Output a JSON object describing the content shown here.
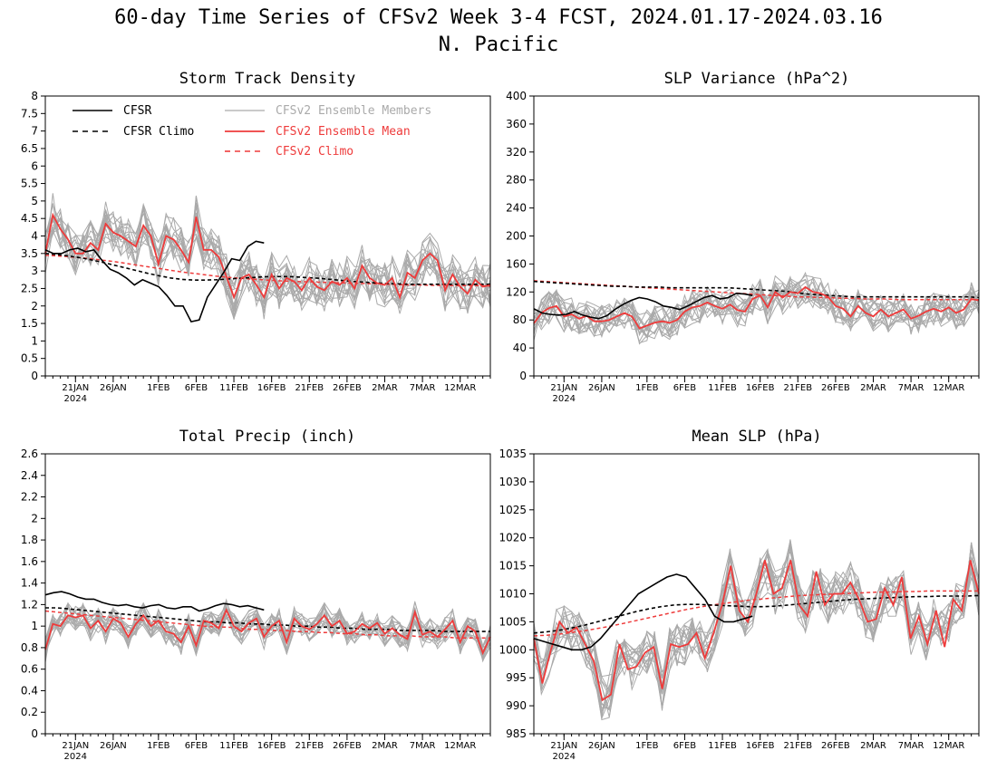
{
  "figure": {
    "title_line1": "60-day Time Series of CFSv2 Week 3-4 FCST, 2024.01.17-2024.03.16",
    "title_line2": "N. Pacific"
  },
  "legend": [
    {
      "name": "CFSR",
      "color": "#000000",
      "dashed": false,
      "width": 1.6
    },
    {
      "name": "CFSR Climo",
      "color": "#000000",
      "dashed": true,
      "width": 1.6
    },
    {
      "name": "CFSv2 Ensemble Members",
      "color": "#aaaaaa",
      "dashed": false,
      "width": 1.2
    },
    {
      "name": "CFSv2 Ensemble Mean",
      "color": "#ee3b3b",
      "dashed": false,
      "width": 1.8
    },
    {
      "name": "CFSv2 Climo",
      "color": "#ee3b3b",
      "dashed": true,
      "width": 1.6
    }
  ],
  "x_ticks": {
    "labels": [
      "21JAN",
      "26JAN",
      "1FEB",
      "6FEB",
      "11FEB",
      "16FEB",
      "21FEB",
      "26FEB",
      "2MAR",
      "7MAR",
      "12MAR"
    ],
    "year_label": "2024",
    "day_index": [
      4,
      9,
      15,
      20,
      25,
      30,
      35,
      40,
      45,
      50,
      55
    ]
  },
  "chart_data": [
    {
      "type": "line",
      "title": "Storm Track Density",
      "ylim": [
        0,
        8
      ],
      "yticks": [
        "0",
        "0.5",
        "1",
        "1.5",
        "2",
        "2.5",
        "3",
        "3.5",
        "4",
        "4.5",
        "5",
        "5.5",
        "6",
        "6.5",
        "7",
        "7.5",
        "8"
      ],
      "ytick_values": [
        0,
        0.5,
        1,
        1.5,
        2,
        2.5,
        3,
        3.5,
        4,
        4.5,
        5,
        5.5,
        6,
        6.5,
        7,
        7.5,
        8
      ],
      "ensemble_mean": [
        3.5,
        4.6,
        4.2,
        3.9,
        3.5,
        3.5,
        3.8,
        3.6,
        4.35,
        4.1,
        4.0,
        3.85,
        3.7,
        4.3,
        4.0,
        3.2,
        4.0,
        3.9,
        3.6,
        3.25,
        4.55,
        3.6,
        3.6,
        3.4,
        2.85,
        2.25,
        2.8,
        2.9,
        2.6,
        2.25,
        2.9,
        2.5,
        2.8,
        2.7,
        2.45,
        2.8,
        2.55,
        2.45,
        2.7,
        2.6,
        2.8,
        2.5,
        3.15,
        2.8,
        2.65,
        2.6,
        2.8,
        2.25,
        2.95,
        2.8,
        3.3,
        3.5,
        3.3,
        2.45,
        2.9,
        2.55,
        2.35,
        2.75,
        2.55,
        2.6
      ],
      "cfsr": [
        3.6,
        3.5,
        3.5,
        3.6,
        3.65,
        3.55,
        3.6,
        3.3,
        3.05,
        2.95,
        2.8,
        2.6,
        2.75,
        2.65,
        2.55,
        2.3,
        2.0,
        2.0,
        1.55,
        1.6,
        2.25,
        2.6,
        2.95,
        3.35,
        3.3,
        3.7,
        3.85,
        3.8
      ],
      "cfsr_climo": [
        3.5,
        3.47,
        3.43,
        3.38,
        3.32,
        3.25,
        3.17,
        3.09,
        3.01,
        2.93,
        2.86,
        2.8,
        2.76,
        2.74,
        2.74,
        2.75,
        2.77,
        2.79,
        2.81,
        2.83,
        2.84,
        2.84,
        2.83,
        2.81,
        2.79,
        2.76,
        2.73,
        2.7,
        2.68,
        2.66,
        2.64,
        2.63,
        2.62,
        2.62,
        2.62,
        2.62,
        2.62,
        2.62,
        2.62,
        2.62
      ],
      "cfsv2_climo": [
        3.45,
        3.43,
        3.41,
        3.38,
        3.35,
        3.31,
        3.27,
        3.22,
        3.17,
        3.12,
        3.07,
        3.02,
        2.97,
        2.93,
        2.89,
        2.85,
        2.82,
        2.79,
        2.77,
        2.75,
        2.73,
        2.71,
        2.7,
        2.69,
        2.68,
        2.67,
        2.66,
        2.65,
        2.64,
        2.63,
        2.62,
        2.61,
        2.6,
        2.6,
        2.59,
        2.59,
        2.58,
        2.58,
        2.58,
        2.57
      ]
    },
    {
      "type": "line",
      "title": "SLP Variance (hPa^2)",
      "ylim": [
        0,
        400
      ],
      "yticks": [
        "0",
        "40",
        "80",
        "120",
        "160",
        "200",
        "240",
        "280",
        "320",
        "360",
        "400"
      ],
      "ytick_values": [
        0,
        40,
        80,
        120,
        160,
        200,
        240,
        280,
        320,
        360,
        400
      ],
      "ensemble_mean": [
        75,
        90,
        97,
        100,
        85,
        88,
        82,
        86,
        78,
        78,
        80,
        85,
        90,
        85,
        68,
        72,
        76,
        78,
        76,
        80,
        92,
        98,
        100,
        105,
        100,
        96,
        102,
        94,
        92,
        110,
        115,
        98,
        120,
        112,
        120,
        118,
        127,
        120,
        118,
        113,
        100,
        96,
        85,
        100,
        90,
        85,
        95,
        85,
        90,
        95,
        82,
        86,
        92,
        96,
        92,
        98,
        90,
        95,
        110,
        108
      ],
      "cfsr": [
        96,
        90,
        88,
        87,
        88,
        92,
        87,
        84,
        82,
        86,
        95,
        102,
        108,
        112,
        110,
        106,
        100,
        98,
        95,
        100,
        106,
        112,
        115,
        110,
        112,
        118,
        117,
        115
      ],
      "cfsr_climo": [
        135,
        134,
        133,
        132,
        131,
        130,
        129,
        128,
        128,
        127,
        127,
        127,
        126,
        126,
        126,
        126,
        126,
        126,
        125,
        124,
        123,
        122,
        121,
        119,
        117,
        116,
        115,
        114,
        113,
        113,
        113,
        113,
        113,
        113,
        113,
        113,
        113,
        113,
        113,
        112
      ],
      "cfsv2_climo": [
        136,
        135,
        134,
        133,
        132,
        131,
        130,
        129,
        128,
        127,
        126,
        125,
        124,
        123,
        122,
        121,
        120,
        119,
        118,
        117,
        116,
        115,
        114,
        113,
        113,
        112,
        112,
        111,
        111,
        110,
        110,
        110,
        109,
        109,
        109,
        109,
        109,
        109,
        109,
        109
      ]
    },
    {
      "type": "line",
      "title": "Total Precip (inch)",
      "ylim": [
        0,
        2.6
      ],
      "yticks": [
        "0",
        "0.2",
        "0.4",
        "0.6",
        "0.8",
        "1",
        "1.2",
        "1.4",
        "1.6",
        "1.8",
        "2",
        "2.2",
        "2.4",
        "2.6"
      ],
      "ytick_values": [
        0,
        0.2,
        0.4,
        0.6,
        0.8,
        1.0,
        1.2,
        1.4,
        1.6,
        1.8,
        2.0,
        2.2,
        2.4,
        2.6
      ],
      "ensemble_mean": [
        0.78,
        1.02,
        1.0,
        1.1,
        1.08,
        1.1,
        0.98,
        1.05,
        0.95,
        1.07,
        1.03,
        0.9,
        1.02,
        1.1,
        1.0,
        1.05,
        0.95,
        0.93,
        0.85,
        1.0,
        0.82,
        1.05,
        1.03,
        0.98,
        1.15,
        1.0,
        0.95,
        1.03,
        1.07,
        0.9,
        1.0,
        1.05,
        0.85,
        1.07,
        1.0,
        0.97,
        1.02,
        1.1,
        1.0,
        1.05,
        0.93,
        0.95,
        1.02,
        0.98,
        1.03,
        0.93,
        0.98,
        0.92,
        0.88,
        1.13,
        0.92,
        0.95,
        0.9,
        0.97,
        1.05,
        0.85,
        1.0,
        0.95,
        0.75,
        0.9
      ],
      "cfsr": [
        1.29,
        1.31,
        1.32,
        1.3,
        1.27,
        1.25,
        1.25,
        1.22,
        1.2,
        1.19,
        1.2,
        1.18,
        1.17,
        1.19,
        1.2,
        1.17,
        1.16,
        1.18,
        1.18,
        1.14,
        1.16,
        1.19,
        1.21,
        1.2,
        1.18,
        1.19,
        1.17,
        1.15
      ],
      "cfsr_climo": [
        1.17,
        1.17,
        1.16,
        1.15,
        1.14,
        1.13,
        1.12,
        1.11,
        1.1,
        1.09,
        1.08,
        1.07,
        1.06,
        1.05,
        1.04,
        1.04,
        1.03,
        1.03,
        1.02,
        1.02,
        1.01,
        1.01,
        1.0,
        1.0,
        0.99,
        0.99,
        0.98,
        0.98,
        0.97,
        0.97,
        0.97,
        0.96,
        0.96,
        0.96,
        0.96,
        0.95,
        0.95,
        0.95,
        0.95,
        0.95
      ],
      "cfsv2_climo": [
        1.14,
        1.13,
        1.12,
        1.11,
        1.1,
        1.09,
        1.08,
        1.07,
        1.06,
        1.05,
        1.04,
        1.03,
        1.02,
        1.01,
        1.0,
        0.99,
        0.99,
        0.98,
        0.97,
        0.97,
        0.96,
        0.96,
        0.95,
        0.95,
        0.94,
        0.94,
        0.93,
        0.93,
        0.92,
        0.92,
        0.91,
        0.91,
        0.91,
        0.9,
        0.9,
        0.9,
        0.89,
        0.89,
        0.89,
        0.89
      ]
    },
    {
      "type": "line",
      "title": "Mean SLP (hPa)",
      "ylim": [
        985,
        1035
      ],
      "yticks": [
        "985",
        "990",
        "995",
        "1000",
        "1005",
        "1010",
        "1015",
        "1020",
        "1025",
        "1030",
        "1035"
      ],
      "ytick_values": [
        985,
        990,
        995,
        1000,
        1005,
        1010,
        1015,
        1020,
        1025,
        1030,
        1035
      ],
      "ensemble_mean": [
        1002,
        994,
        1000,
        1005,
        1003,
        1004,
        1001,
        998,
        991,
        992,
        1001,
        996.5,
        997,
        999.5,
        1000.5,
        993,
        1001,
        1000.5,
        1001,
        1003,
        998.5,
        1003,
        1008,
        1015,
        1007,
        1005,
        1010,
        1016,
        1010,
        1011,
        1016,
        1008,
        1006,
        1014,
        1008,
        1010,
        1010,
        1012,
        1009,
        1005,
        1005.5,
        1011,
        1008,
        1013,
        1002,
        1006,
        1001,
        1007,
        1000.5,
        1009,
        1007,
        1016,
        1010
      ],
      "cfsr": [
        1002,
        1001.5,
        1001,
        1000.5,
        1000,
        1000,
        1000.5,
        1002,
        1004,
        1006,
        1008,
        1010,
        1011,
        1012,
        1013,
        1013.5,
        1013,
        1011,
        1009,
        1006,
        1005,
        1005,
        1005.5,
        1006
      ],
      "cfsr_climo": [
        1003,
        1003.2,
        1003.5,
        1003.9,
        1004.4,
        1005,
        1005.6,
        1006.2,
        1006.8,
        1007.3,
        1007.7,
        1008,
        1008.1,
        1008.1,
        1008,
        1007.9,
        1007.8,
        1007.7,
        1007.7,
        1007.8,
        1008,
        1008.2,
        1008.4,
        1008.6,
        1008.8,
        1009,
        1009.1,
        1009.2,
        1009.3,
        1009.4,
        1009.5,
        1009.5,
        1009.6,
        1009.6,
        1009.6,
        1009.7
      ],
      "cfsv2_climo": [
        1002.5,
        1002.6,
        1002.8,
        1003.1,
        1003.4,
        1003.8,
        1004.2,
        1004.7,
        1005.2,
        1005.7,
        1006.2,
        1006.7,
        1007.2,
        1007.6,
        1008,
        1008.3,
        1008.6,
        1008.9,
        1009.1,
        1009.3,
        1009.5,
        1009.7,
        1009.8,
        1009.9,
        1010,
        1010.1,
        1010.2,
        1010.3,
        1010.3,
        1010.4,
        1010.4,
        1010.5,
        1010.5,
        1010.5,
        1010.5,
        1010.5
      ]
    }
  ]
}
